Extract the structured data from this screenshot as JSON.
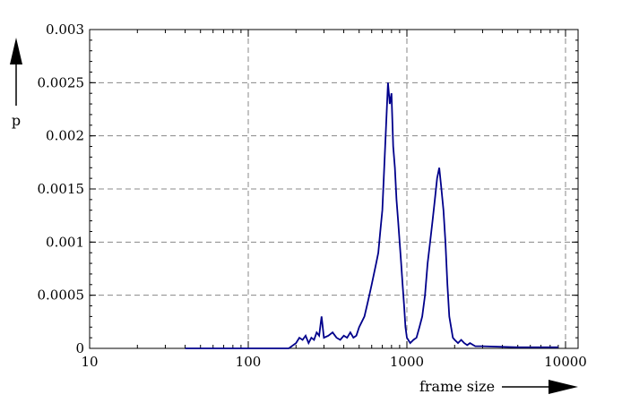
{
  "chart_data": {
    "type": "line",
    "xlabel": "frame size",
    "ylabel": "p",
    "xscale": "log",
    "xlim": [
      10,
      12000
    ],
    "ylim": [
      0,
      0.003
    ],
    "x_ticks": [
      10,
      100,
      1000,
      10000
    ],
    "x_tick_labels": [
      "10",
      "100",
      "1000",
      "10000"
    ],
    "y_ticks": [
      0,
      0.0005,
      0.001,
      0.0015,
      0.002,
      0.0025,
      0.003
    ],
    "y_tick_labels": [
      "0",
      "0.0005",
      "0.001",
      "0.0015",
      "0.002",
      "0.0025",
      "0.003"
    ],
    "grid": true,
    "line_color": "#00008B",
    "series": [
      {
        "x": [
          40,
          100,
          180,
          200,
          210,
          220,
          230,
          240,
          250,
          260,
          270,
          280,
          290,
          300,
          320,
          340,
          360,
          380,
          400,
          420,
          440,
          460,
          480,
          500,
          520,
          540,
          560,
          580,
          600,
          620,
          640,
          660,
          680,
          700,
          720,
          740,
          760,
          780,
          800,
          820,
          840,
          860,
          880,
          900,
          920,
          940,
          960,
          980,
          1000,
          1050,
          1100,
          1150,
          1200,
          1250,
          1300,
          1350,
          1400,
          1450,
          1500,
          1550,
          1600,
          1650,
          1700,
          1750,
          1800,
          1850,
          1900,
          1950,
          2000,
          2100,
          2200,
          2300,
          2400,
          2500,
          2700,
          3000,
          5000,
          9000
        ],
        "y": [
          0,
          0,
          0,
          5e-05,
          0.0001,
          8e-05,
          0.00012,
          5e-05,
          0.0001,
          8e-05,
          0.00015,
          0.00012,
          0.0003,
          0.0001,
          0.00012,
          0.00015,
          0.0001,
          8e-05,
          0.00012,
          0.0001,
          0.00015,
          0.0001,
          0.00012,
          0.0002,
          0.00025,
          0.0003,
          0.0004,
          0.0005,
          0.0006,
          0.0007,
          0.0008,
          0.0009,
          0.0011,
          0.0013,
          0.0017,
          0.0021,
          0.0025,
          0.0023,
          0.0024,
          0.0019,
          0.0017,
          0.0014,
          0.0012,
          0.001,
          0.0008,
          0.0006,
          0.0004,
          0.0002,
          0.0001,
          5e-05,
          8e-05,
          0.0001,
          0.0002,
          0.0003,
          0.0005,
          0.0008,
          0.001,
          0.0012,
          0.0014,
          0.0016,
          0.0017,
          0.0015,
          0.0013,
          0.001,
          0.0006,
          0.0003,
          0.0002,
          0.0001,
          8e-05,
          5e-05,
          8e-05,
          5e-05,
          3e-05,
          5e-05,
          2e-05,
          2e-05,
          1e-05,
          1e-05
        ]
      }
    ]
  }
}
